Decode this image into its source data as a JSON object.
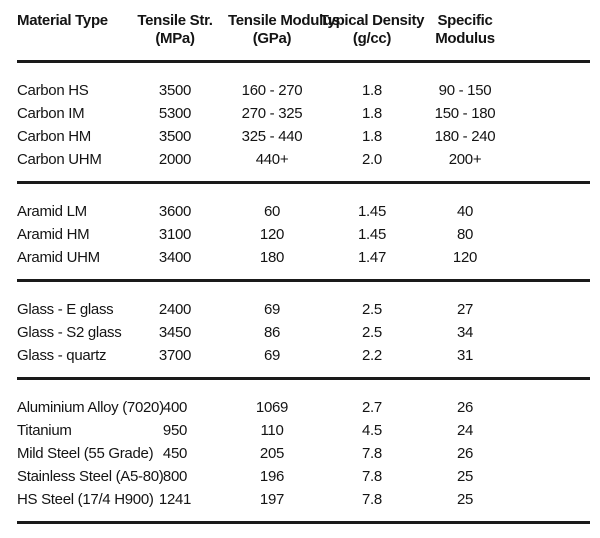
{
  "colors": {
    "background": "#ffffff",
    "text": "#141414",
    "rule": "#1a1a1a"
  },
  "table": {
    "columns": [
      {
        "line1": "Material Type",
        "line2": ""
      },
      {
        "line1": "Tensile Str.",
        "line2": "(MPa)"
      },
      {
        "line1": "Tensile Modulus",
        "line2": "(GPa)"
      },
      {
        "line1": "Typical Density",
        "line2": "(g/cc)"
      },
      {
        "line1": "Specific",
        "line2": "Modulus"
      }
    ],
    "groups": [
      {
        "name": "carbon",
        "rows": [
          {
            "cells": [
              "Carbon HS",
              "3500",
              "160 - 270",
              "1.8",
              "90 - 150"
            ]
          },
          {
            "cells": [
              "Carbon IM",
              "5300",
              "270 - 325",
              "1.8",
              "150 - 180"
            ]
          },
          {
            "cells": [
              "Carbon HM",
              "3500",
              "325 - 440",
              "1.8",
              "180 - 240"
            ]
          },
          {
            "cells": [
              "Carbon UHM",
              "2000",
              "440+",
              "2.0",
              "200+"
            ]
          }
        ]
      },
      {
        "name": "aramid",
        "rows": [
          {
            "cells": [
              "Aramid LM",
              "3600",
              "60",
              "1.45",
              "40"
            ]
          },
          {
            "cells": [
              "Aramid HM",
              "3100",
              "120",
              "1.45",
              "80"
            ]
          },
          {
            "cells": [
              "Aramid UHM",
              "3400",
              "180",
              "1.47",
              "120"
            ]
          }
        ]
      },
      {
        "name": "glass",
        "rows": [
          {
            "cells": [
              "Glass - E glass",
              "2400",
              "69",
              "2.5",
              "27"
            ]
          },
          {
            "cells": [
              "Glass - S2 glass",
              "3450",
              "86",
              "2.5",
              "34"
            ]
          },
          {
            "cells": [
              "Glass - quartz",
              "3700",
              "69",
              "2.2",
              "31"
            ]
          }
        ]
      },
      {
        "name": "metals",
        "rows": [
          {
            "cells": [
              "Aluminium Alloy (7020)",
              "400",
              "1069",
              "2.7",
              "26"
            ]
          },
          {
            "cells": [
              "Titanium",
              "950",
              "110",
              "4.5",
              "24"
            ]
          },
          {
            "cells": [
              "Mild Steel (55 Grade)",
              "450",
              "205",
              "7.8",
              "26"
            ]
          },
          {
            "cells": [
              "Stainless Steel (A5-80)",
              "800",
              "196",
              "7.8",
              "25"
            ]
          },
          {
            "cells": [
              "HS Steel (17/4 H900)",
              "1241",
              "197",
              "7.8",
              "25"
            ]
          }
        ]
      }
    ]
  },
  "chart_data": {
    "type": "table",
    "columns": [
      "Material Type",
      "Tensile Str. (MPa)",
      "Tensile Modulus (GPa)",
      "Typical Density (g/cc)",
      "Specific Modulus"
    ],
    "rows": [
      [
        "Carbon HS",
        "3500",
        "160 - 270",
        "1.8",
        "90 - 150"
      ],
      [
        "Carbon IM",
        "5300",
        "270 - 325",
        "1.8",
        "150 - 180"
      ],
      [
        "Carbon HM",
        "3500",
        "325 - 440",
        "1.8",
        "180 - 240"
      ],
      [
        "Carbon UHM",
        "2000",
        "440+",
        "2.0",
        "200+"
      ],
      [
        "Aramid LM",
        "3600",
        "60",
        "1.45",
        "40"
      ],
      [
        "Aramid HM",
        "3100",
        "120",
        "1.45",
        "80"
      ],
      [
        "Aramid UHM",
        "3400",
        "180",
        "1.47",
        "120"
      ],
      [
        "Glass - E glass",
        "2400",
        "69",
        "2.5",
        "27"
      ],
      [
        "Glass - S2 glass",
        "3450",
        "86",
        "2.5",
        "34"
      ],
      [
        "Glass - quartz",
        "3700",
        "69",
        "2.2",
        "31"
      ],
      [
        "Aluminium Alloy (7020)",
        "400",
        "1069",
        "2.7",
        "26"
      ],
      [
        "Titanium",
        "950",
        "110",
        "4.5",
        "24"
      ],
      [
        "Mild Steel (55 Grade)",
        "450",
        "205",
        "7.8",
        "26"
      ],
      [
        "Stainless Steel (A5-80)",
        "800",
        "196",
        "7.8",
        "25"
      ],
      [
        "HS Steel (17/4 H900)",
        "1241",
        "197",
        "7.8",
        "25"
      ]
    ]
  }
}
